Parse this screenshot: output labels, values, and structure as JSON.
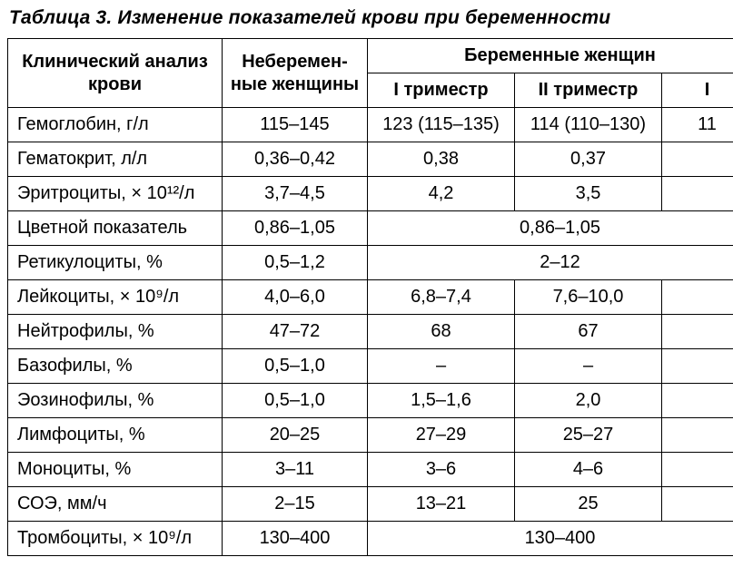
{
  "title": "Таблица 3. Изменение показателей крови при беременности",
  "header": {
    "param": "Клинический анализ\nкрови",
    "nonpreg": "Неберемен-\nные женщины",
    "preg_group": "Беременные женщин",
    "tri1": "I триместр",
    "tri2": "II триместр",
    "tri3": "I"
  },
  "rows": [
    {
      "param": "Гемоглобин, г/л",
      "np": "115–145",
      "t1": "123 (115–135)",
      "t2": "114 (110–130)",
      "t3": "11",
      "span": null
    },
    {
      "param": "Гематокрит, л/л",
      "np": "0,36–0,42",
      "t1": "0,38",
      "t2": "0,37",
      "t3": "",
      "span": null
    },
    {
      "param": "Эритроциты, × 10¹²/л",
      "np": "3,7–4,5",
      "t1": "4,2",
      "t2": "3,5",
      "t3": "",
      "span": null
    },
    {
      "param": "Цветной показатель",
      "np": "0,86–1,05",
      "span": "0,86–1,05"
    },
    {
      "param": "Ретикулоциты, %",
      "np": "0,5–1,2",
      "span": "2–12"
    },
    {
      "param": "Лейкоциты, × 10⁹/л",
      "np": "4,0–6,0",
      "t1": "6,8–7,4",
      "t2": "7,6–10,0",
      "t3": "",
      "span": null
    },
    {
      "param": "Нейтрофилы, %",
      "np": "47–72",
      "t1": "68",
      "t2": "67",
      "t3": "",
      "span": null
    },
    {
      "param": "Базофилы, %",
      "np": "0,5–1,0",
      "t1": "–",
      "t2": "–",
      "t3": "",
      "span": null
    },
    {
      "param": "Эозинофилы, %",
      "np": "0,5–1,0",
      "t1": "1,5–1,6",
      "t2": "2,0",
      "t3": "",
      "span": null
    },
    {
      "param": "Лимфоциты, %",
      "np": "20–25",
      "t1": "27–29",
      "t2": "25–27",
      "t3": "",
      "span": null
    },
    {
      "param": "Моноциты, %",
      "np": "3–11",
      "t1": "3–6",
      "t2": "4–6",
      "t3": "",
      "span": null
    },
    {
      "param": "СОЭ, мм/ч",
      "np": "2–15",
      "t1": "13–21",
      "t2": "25",
      "t3": "",
      "span": null
    },
    {
      "param": "Тромбоциты, × 10⁹/л",
      "np": "130–400",
      "span": "130–400"
    }
  ],
  "style": {
    "border_color": "#000000",
    "background": "#ffffff",
    "font_family": "Arial",
    "cell_fontsize_pt": 15,
    "title_fontsize_pt": 16
  }
}
